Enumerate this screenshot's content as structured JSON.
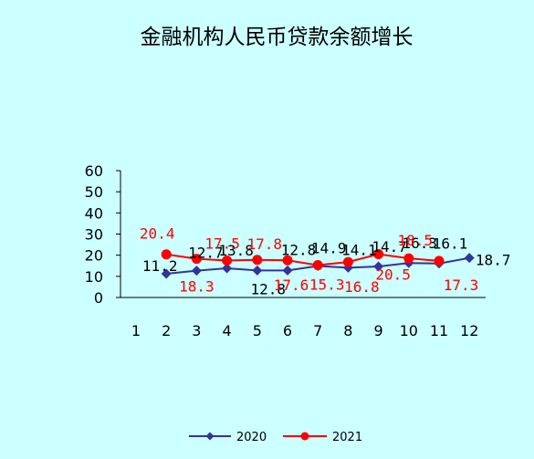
{
  "colors": {
    "background": "#ccffff",
    "series2020": "#333399",
    "series2021": "#ff0000"
  },
  "chart_data": {
    "type": "line",
    "title": "金融机构人民币贷款余额增长",
    "xlabel": "",
    "ylabel": "",
    "categories": [
      "1",
      "2",
      "3",
      "4",
      "5",
      "6",
      "7",
      "8",
      "9",
      "10",
      "11",
      "12"
    ],
    "ylim": [
      0,
      60
    ],
    "yticks": [
      "0",
      "10",
      "20",
      "30",
      "40",
      "50",
      "60"
    ],
    "grid": false,
    "legend_position": "bottom",
    "series": [
      {
        "name": "2020",
        "marker": "diamond",
        "values": [
          null,
          11.2,
          12.7,
          13.8,
          12.8,
          12.8,
          14.9,
          14.1,
          14.7,
          16.3,
          16.1,
          18.7
        ],
        "labels": [
          "",
          "11.2",
          "12.7",
          "13.8",
          "12.8",
          "12.8",
          "14.9",
          "14.1",
          "14.7",
          "16.3",
          "16.1",
          "18.7"
        ]
      },
      {
        "name": "2021",
        "marker": "circle",
        "values": [
          null,
          20.4,
          18.3,
          17.5,
          17.8,
          17.6,
          15.3,
          16.8,
          20.5,
          18.5,
          17.3,
          null
        ],
        "labels": [
          "",
          "20.4",
          "18.3",
          "17.5",
          "17.8",
          "17.6",
          "15.3",
          "16.8",
          "20.5",
          "18.5",
          "17.3",
          ""
        ]
      }
    ]
  }
}
